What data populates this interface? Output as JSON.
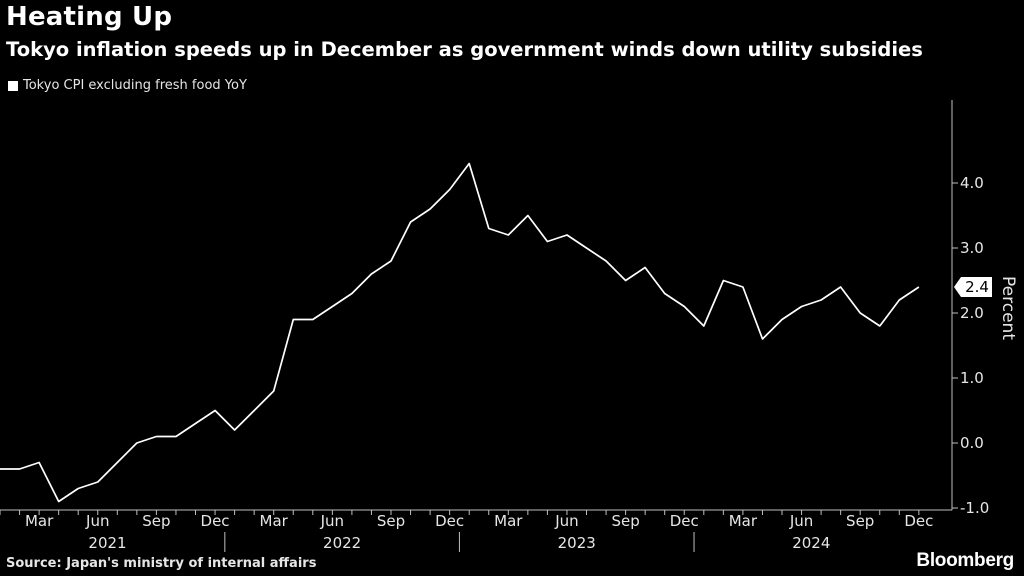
{
  "header": {
    "title": "Heating Up",
    "subtitle": "Tokyo inflation speeds up in December as government winds down utility subsidies"
  },
  "footer": {
    "source": "Source: Japan's ministry of internal affairs",
    "brand": "Bloomberg"
  },
  "colors": {
    "background": "#000000",
    "line": "#ffffff",
    "text": "#e6e6e6"
  },
  "chart_data": {
    "type": "line",
    "title": "Heating Up",
    "subtitle": "Tokyo inflation speeds up in December as government winds down utility subsidies",
    "ylabel": "Percent",
    "ylim": [
      -1.4,
      4.8
    ],
    "yticks": [
      {
        "value": 4.0,
        "label": "4.0"
      },
      {
        "value": 3.0,
        "label": "3.0"
      },
      {
        "value": 2.0,
        "label": "2.0"
      },
      {
        "value": 1.0,
        "label": "1.0"
      },
      {
        "value": 0.0,
        "label": "0.0"
      },
      {
        "value": -1.0,
        "label": "-1.0"
      }
    ],
    "x_tick_labels": [
      "Mar",
      "Jun",
      "Sep",
      "Dec",
      "Mar",
      "Jun",
      "Sep",
      "Dec",
      "Mar",
      "Jun",
      "Sep",
      "Dec",
      "Mar",
      "Jun",
      "Sep",
      "Dec"
    ],
    "x_years": [
      "2021",
      "2022",
      "2023",
      "2024"
    ],
    "legend_position": "top-left",
    "grid": false,
    "last_value_label": "2.4",
    "series": [
      {
        "name": "Tokyo CPI excluding fresh food YoY",
        "x": [
          "2021-01",
          "2021-02",
          "2021-03",
          "2021-04",
          "2021-05",
          "2021-06",
          "2021-07",
          "2021-08",
          "2021-09",
          "2021-10",
          "2021-11",
          "2021-12",
          "2022-01",
          "2022-02",
          "2022-03",
          "2022-04",
          "2022-05",
          "2022-06",
          "2022-07",
          "2022-08",
          "2022-09",
          "2022-10",
          "2022-11",
          "2022-12",
          "2023-01",
          "2023-02",
          "2023-03",
          "2023-04",
          "2023-05",
          "2023-06",
          "2023-07",
          "2023-08",
          "2023-09",
          "2023-10",
          "2023-11",
          "2023-12",
          "2024-01",
          "2024-02",
          "2024-03",
          "2024-04",
          "2024-05",
          "2024-06",
          "2024-07",
          "2024-08",
          "2024-09",
          "2024-10",
          "2024-11",
          "2024-12"
        ],
        "values": [
          -0.4,
          -0.4,
          -0.3,
          -0.9,
          -0.7,
          -0.6,
          -0.3,
          0.0,
          0.1,
          0.1,
          0.3,
          0.5,
          0.2,
          0.5,
          0.8,
          1.9,
          1.9,
          2.1,
          2.3,
          2.6,
          2.8,
          3.4,
          3.6,
          3.9,
          4.3,
          3.3,
          3.2,
          3.5,
          3.1,
          3.2,
          3.0,
          2.8,
          2.5,
          2.7,
          2.3,
          2.1,
          1.8,
          2.5,
          2.4,
          1.6,
          1.9,
          2.1,
          2.2,
          2.4,
          2.0,
          1.8,
          2.2,
          2.4
        ]
      }
    ]
  }
}
